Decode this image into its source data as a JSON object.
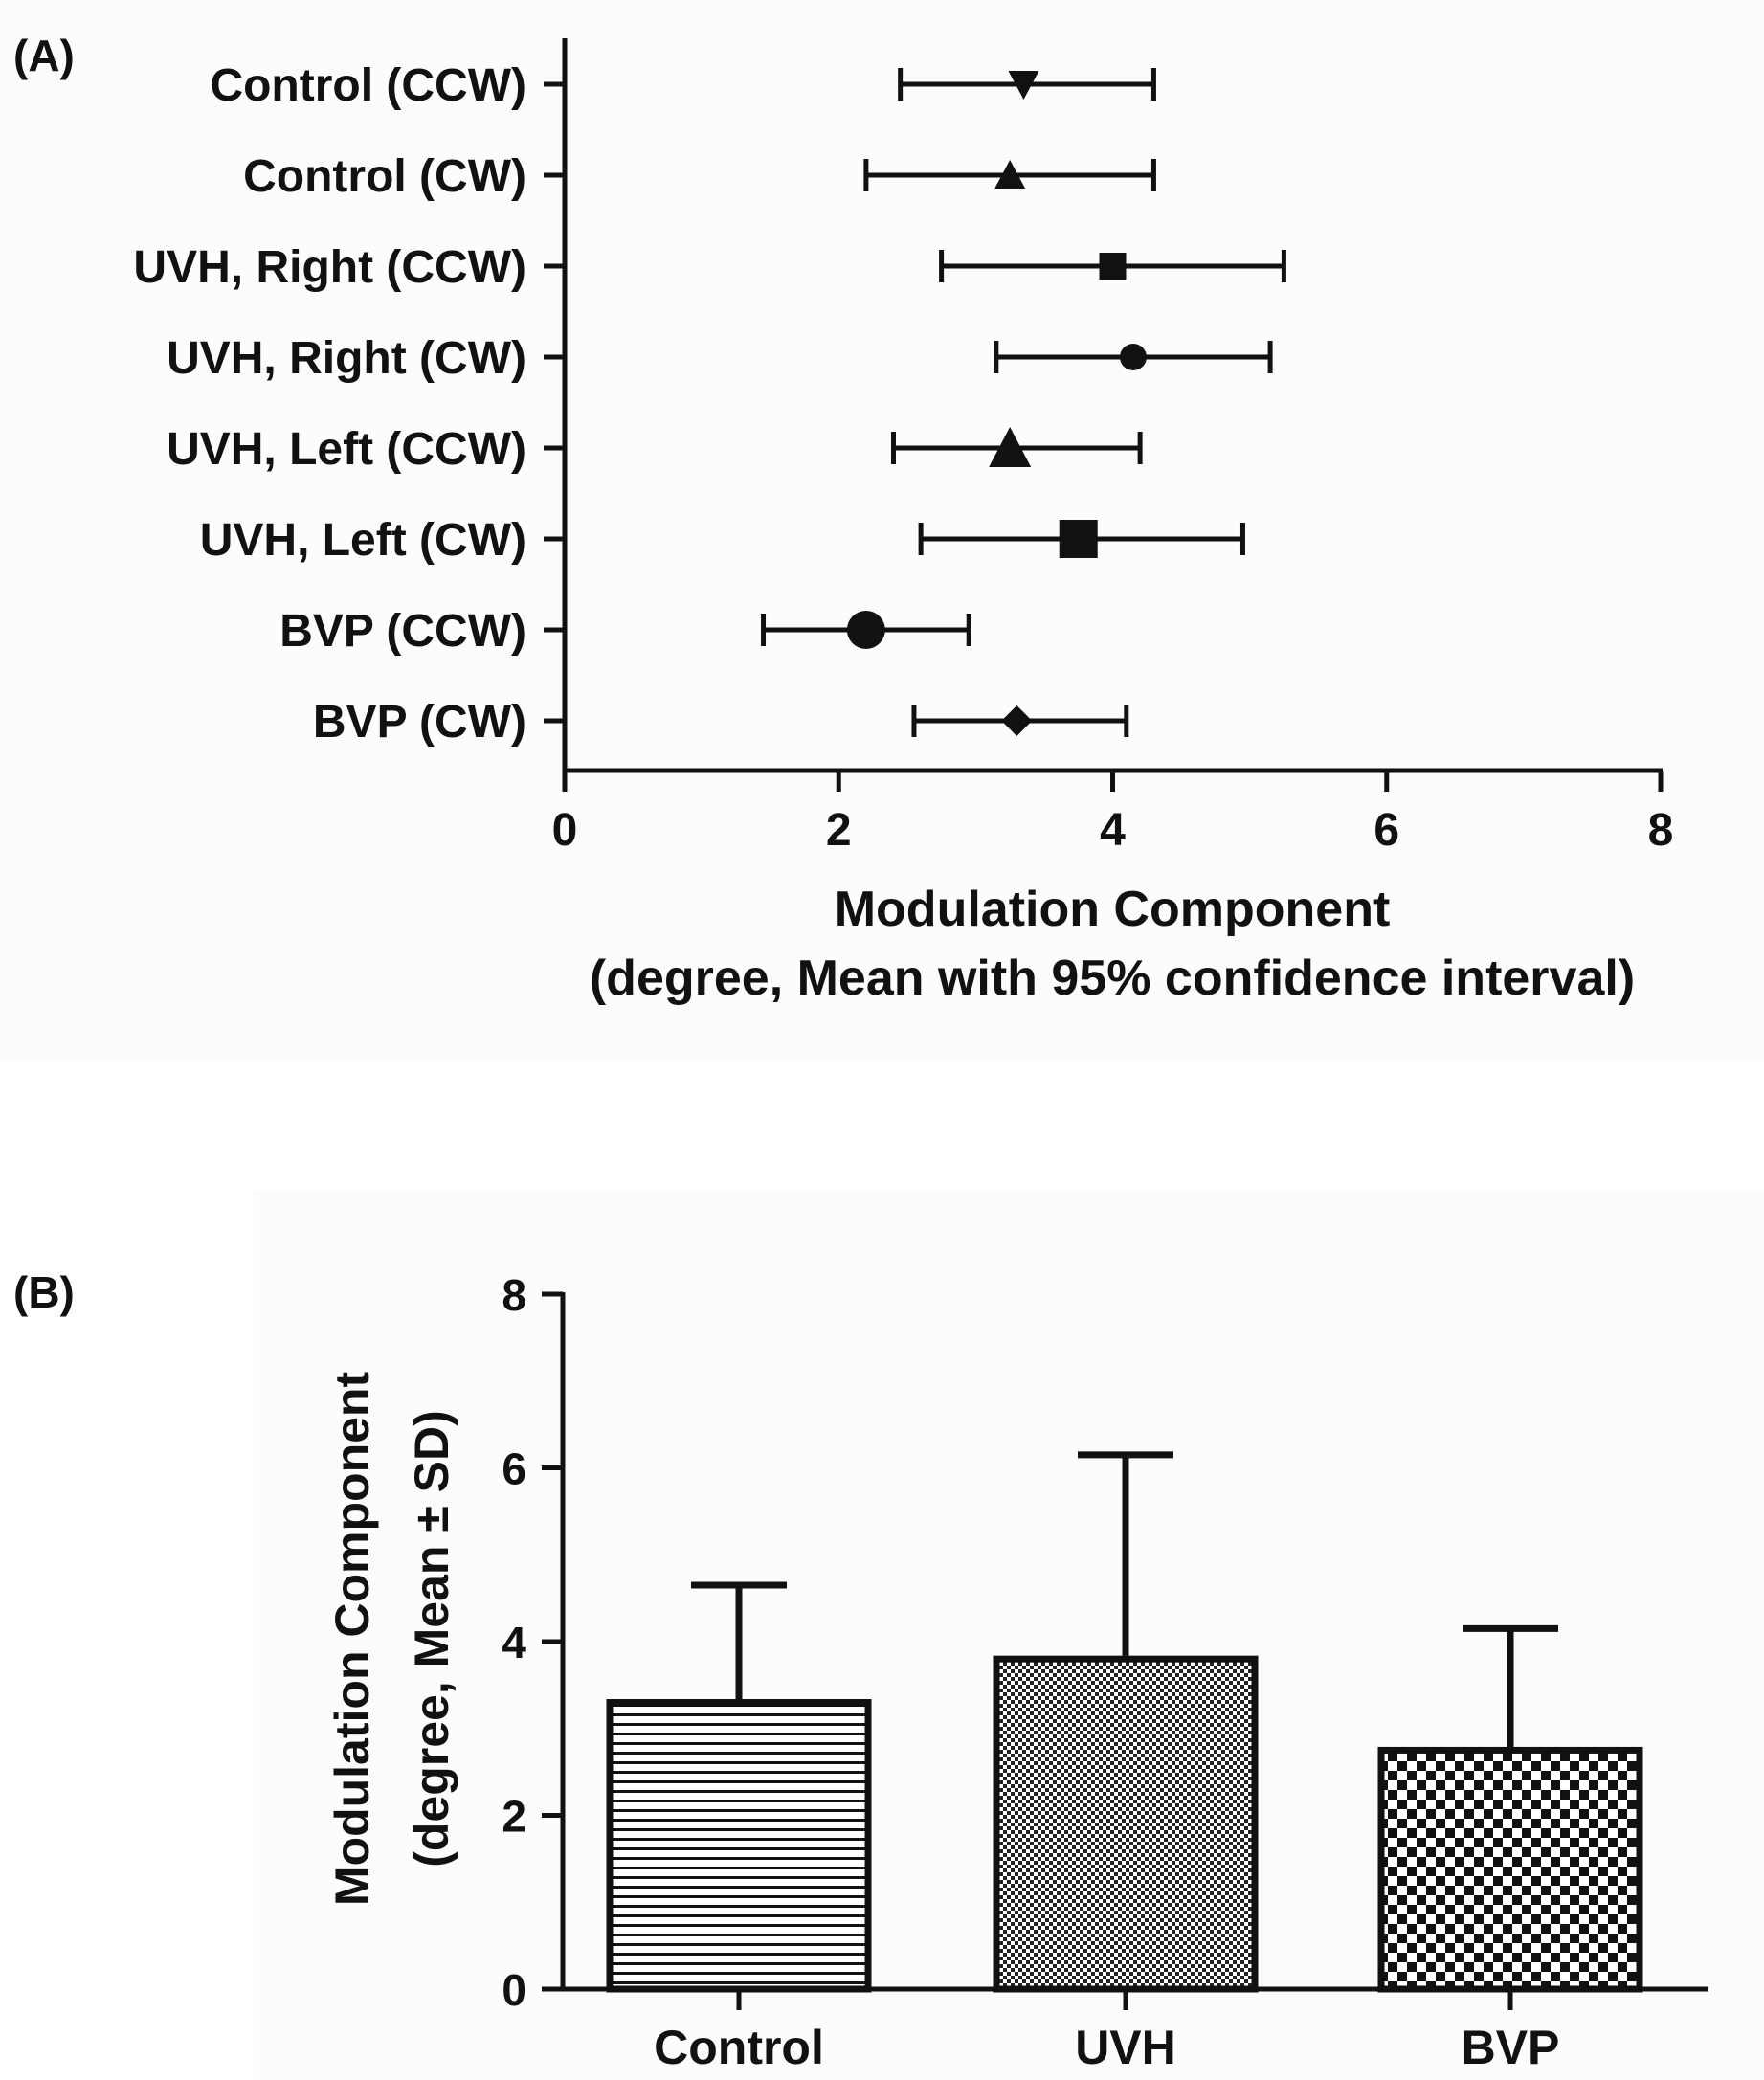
{
  "chart_data": [
    {
      "panel": "(A)",
      "type": "forest",
      "orientation": "horizontal",
      "xlabel": "Modulation Component",
      "xlabel2": "(degree, Mean with 95% confidence interval)",
      "xlim": [
        0,
        8
      ],
      "xticks": [
        0,
        2,
        4,
        6,
        8
      ],
      "categories": [
        "Control (CCW)",
        "Control (CW)",
        "UVH, Right (CCW)",
        "UVH, Right (CW)",
        "UVH, Left (CCW)",
        "UVH, Left (CW)",
        "BVP (CCW)",
        "BVP (CW)"
      ],
      "mean": [
        3.35,
        3.25,
        4.0,
        4.15,
        3.25,
        3.75,
        2.2,
        3.3
      ],
      "lower": [
        2.45,
        2.2,
        2.75,
        3.15,
        2.4,
        2.6,
        1.45,
        2.55
      ],
      "upper": [
        4.3,
        4.3,
        5.25,
        5.15,
        4.2,
        4.95,
        2.95,
        4.1
      ],
      "markers": [
        "triangle-down",
        "triangle-up",
        "square",
        "circle",
        "triangle-up",
        "square",
        "circle",
        "diamond"
      ]
    },
    {
      "panel": "(B)",
      "type": "bar",
      "ylabel": "Modulation Component",
      "ylabel2": "(degree, Mean ± SD)",
      "ylim": [
        0,
        8
      ],
      "yticks": [
        0,
        2,
        4,
        6,
        8
      ],
      "categories": [
        "Control",
        "UVH",
        "BVP"
      ],
      "values": [
        3.3,
        3.8,
        2.75
      ],
      "sd": [
        1.35,
        2.35,
        1.4
      ],
      "patterns": [
        "horizontal-lines",
        "fine-dots",
        "checker"
      ]
    }
  ],
  "colors": {
    "ink": "#111111",
    "background": "#fcfcfc"
  }
}
